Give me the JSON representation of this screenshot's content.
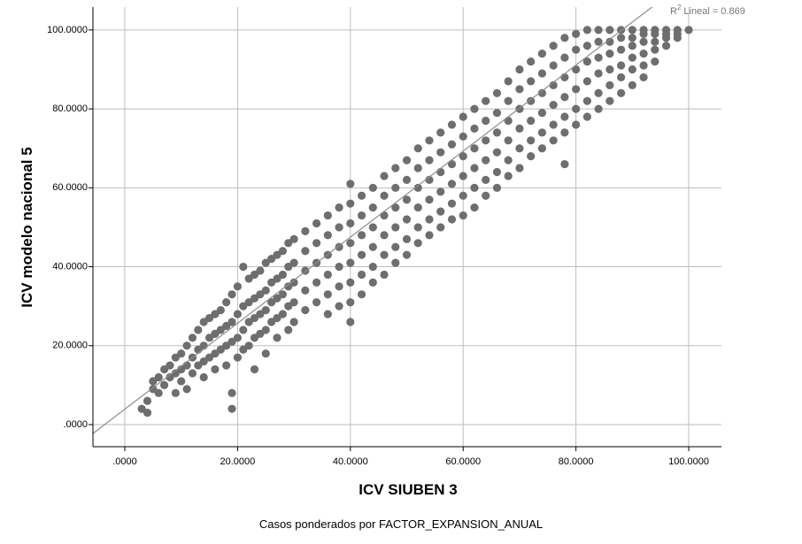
{
  "chart_data": {
    "type": "scatter",
    "x_label": "ICV SIUBEN 3",
    "y_label": "ICV modelo nacional 5",
    "footnote": "Casos ponderados por FACTOR_EXPANSION_ANUAL",
    "fit_label": [
      "R",
      "2",
      "Lineal = 0.869"
    ],
    "fit_line": {
      "slope": 1.09,
      "intercept": 3.9,
      "color": "#8c8c8c"
    },
    "xlim": [
      -5.65,
      105.8
    ],
    "ylim": [
      -5.6,
      105.8
    ],
    "xticks": [
      {
        "value": 0,
        "label": ".0000"
      },
      {
        "value": 20,
        "label": "20.0000"
      },
      {
        "value": 40,
        "label": "40.0000"
      },
      {
        "value": 60,
        "label": "60.0000"
      },
      {
        "value": 80,
        "label": "80.0000"
      },
      {
        "value": 100,
        "label": "100.0000"
      }
    ],
    "yticks": [
      {
        "value": 0,
        "label": ".0000"
      },
      {
        "value": 20,
        "label": "20.0000"
      },
      {
        "value": 40,
        "label": "40.0000"
      },
      {
        "value": 60,
        "label": "60.0000"
      },
      {
        "value": 80,
        "label": "80.0000"
      },
      {
        "value": 100,
        "label": "100.0000"
      }
    ],
    "grid": true,
    "color": "#6e6e6e",
    "x": [
      3,
      4,
      4,
      5,
      5,
      6,
      6,
      7,
      7,
      8,
      8,
      9,
      9,
      9,
      10,
      10,
      10,
      11,
      11,
      11,
      12,
      12,
      12,
      13,
      13,
      13,
      14,
      14,
      14,
      14,
      15,
      15,
      15,
      16,
      16,
      16,
      16,
      17,
      17,
      17,
      18,
      18,
      18,
      18,
      19,
      19,
      19,
      19,
      19,
      20,
      20,
      20,
      20,
      21,
      21,
      21,
      21,
      22,
      22,
      22,
      22,
      23,
      23,
      23,
      23,
      23,
      24,
      24,
      24,
      24,
      25,
      25,
      25,
      25,
      25,
      26,
      26,
      26,
      26,
      27,
      27,
      27,
      27,
      27,
      28,
      28,
      28,
      28,
      29,
      29,
      29,
      29,
      29,
      30,
      30,
      30,
      30,
      30,
      32,
      32,
      32,
      32,
      32,
      34,
      34,
      34,
      34,
      34,
      36,
      36,
      36,
      36,
      36,
      36,
      38,
      38,
      38,
      38,
      38,
      38,
      40,
      40,
      40,
      40,
      40,
      40,
      40,
      40,
      42,
      42,
      42,
      42,
      42,
      42,
      44,
      44,
      44,
      44,
      44,
      44,
      46,
      46,
      46,
      46,
      46,
      46,
      48,
      48,
      48,
      48,
      48,
      48,
      50,
      50,
      50,
      50,
      50,
      50,
      52,
      52,
      52,
      52,
      52,
      52,
      54,
      54,
      54,
      54,
      54,
      54,
      56,
      56,
      56,
      56,
      56,
      56,
      58,
      58,
      58,
      58,
      58,
      58,
      60,
      60,
      60,
      60,
      60,
      60,
      62,
      62,
      62,
      62,
      62,
      62,
      64,
      64,
      64,
      64,
      64,
      64,
      66,
      66,
      66,
      66,
      66,
      66,
      68,
      68,
      68,
      68,
      68,
      68,
      70,
      70,
      70,
      70,
      70,
      70,
      72,
      72,
      72,
      72,
      72,
      72,
      74,
      74,
      74,
      74,
      74,
      74,
      76,
      76,
      76,
      76,
      76,
      76,
      78,
      78,
      78,
      78,
      78,
      78,
      78,
      80,
      80,
      80,
      80,
      80,
      80,
      82,
      82,
      82,
      82,
      82,
      82,
      84,
      84,
      84,
      84,
      84,
      84,
      86,
      86,
      86,
      86,
      86,
      86,
      88,
      88,
      88,
      88,
      88,
      88,
      90,
      90,
      90,
      90,
      90,
      90,
      92,
      92,
      92,
      92,
      92,
      92,
      94,
      94,
      94,
      94,
      94,
      96,
      96,
      96,
      96,
      98,
      98,
      98,
      100
    ],
    "values": [
      4,
      3,
      6,
      9,
      11,
      12,
      8,
      14,
      10,
      15,
      12,
      17,
      13,
      8,
      18,
      14,
      11,
      20,
      15,
      9,
      22,
      17,
      13,
      24,
      19,
      15,
      26,
      20,
      16,
      12,
      27,
      22,
      17,
      28,
      23,
      18,
      14,
      29,
      24,
      19,
      31,
      25,
      20,
      15,
      33,
      26,
      21,
      8,
      4,
      35,
      28,
      22,
      17,
      40,
      30,
      24,
      19,
      37,
      31,
      26,
      20,
      38,
      32,
      27,
      22,
      14,
      39,
      33,
      28,
      23,
      41,
      34,
      29,
      24,
      18,
      42,
      36,
      31,
      26,
      43,
      37,
      32,
      27,
      22,
      44,
      38,
      33,
      28,
      46,
      40,
      35,
      30,
      24,
      47,
      41,
      36,
      31,
      26,
      49,
      44,
      39,
      34,
      29,
      51,
      46,
      41,
      36,
      31,
      53,
      48,
      43,
      38,
      33,
      28,
      55,
      50,
      45,
      40,
      35,
      30,
      61,
      56,
      51,
      46,
      41,
      36,
      31,
      26,
      58,
      53,
      48,
      43,
      38,
      33,
      60,
      55,
      50,
      45,
      40,
      36,
      63,
      58,
      53,
      48,
      43,
      38,
      65,
      60,
      55,
      50,
      45,
      41,
      67,
      62,
      57,
      52,
      47,
      43,
      70,
      65,
      60,
      55,
      50,
      46,
      72,
      67,
      62,
      57,
      52,
      48,
      74,
      69,
      64,
      59,
      54,
      50,
      76,
      71,
      66,
      61,
      56,
      52,
      78,
      73,
      68,
      63,
      58,
      53,
      80,
      75,
      70,
      65,
      60,
      55,
      82,
      77,
      72,
      67,
      62,
      58,
      84,
      79,
      74,
      69,
      64,
      60,
      87,
      82,
      77,
      72,
      67,
      63,
      90,
      85,
      80,
      75,
      70,
      65,
      92,
      87,
      82,
      77,
      72,
      68,
      94,
      89,
      84,
      79,
      74,
      70,
      96,
      91,
      86,
      81,
      76,
      72,
      98,
      93,
      88,
      83,
      78,
      74,
      66,
      99,
      95,
      90,
      85,
      80,
      76,
      100,
      96,
      92,
      87,
      82,
      78,
      100,
      97,
      93,
      89,
      84,
      80,
      100,
      97,
      94,
      90,
      86,
      82,
      100,
      98,
      95,
      91,
      88,
      84,
      100,
      98,
      96,
      93,
      90,
      86,
      100,
      99,
      97,
      94,
      91,
      88,
      100,
      99,
      97,
      95,
      92,
      100,
      99,
      98,
      96,
      100,
      99,
      98,
      100
    ]
  }
}
